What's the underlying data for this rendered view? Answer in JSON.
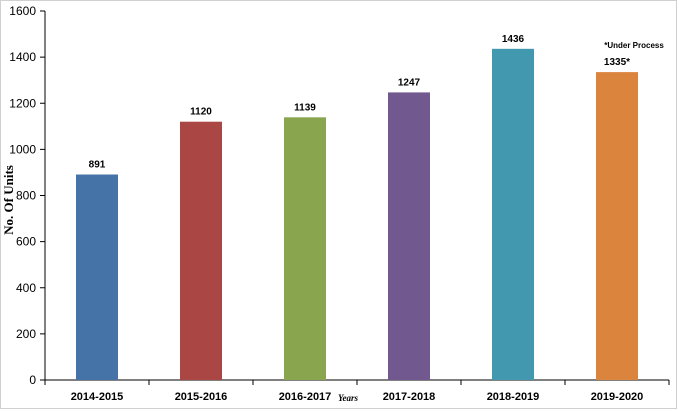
{
  "chart_data": {
    "type": "bar",
    "categories": [
      "2014-2015",
      "2015-2016",
      "2016-2017",
      "2017-2018",
      "2018-2019",
      "2019-2020"
    ],
    "values": [
      891,
      1120,
      1139,
      1247,
      1436,
      1335
    ],
    "data_labels": [
      "891",
      "1120",
      "1139",
      "1247",
      "1436",
      "1335*"
    ],
    "colors": [
      "#4572a7",
      "#aa4643",
      "#89a54e",
      "#71588f",
      "#4198af",
      "#db843d"
    ],
    "ylim": [
      0,
      1600
    ],
    "yticks": [
      0,
      200,
      400,
      600,
      800,
      1000,
      1200,
      1400,
      1600
    ],
    "xlabel": "Years",
    "ylabel": "No. Of Units",
    "annotation": "*Under Process",
    "grid": false,
    "legend": "none"
  }
}
